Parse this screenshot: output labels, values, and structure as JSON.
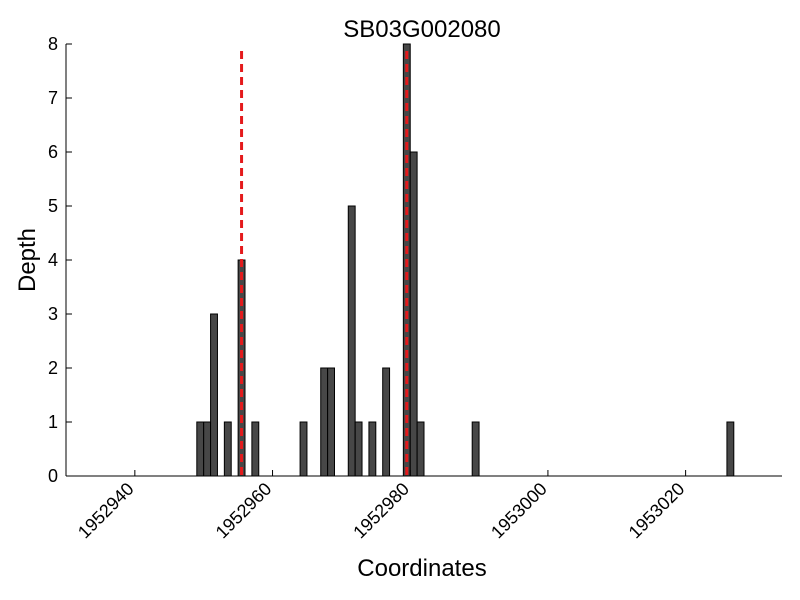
{
  "chart_data": {
    "type": "bar",
    "title": "SB03G002080",
    "xlabel": "Coordinates",
    "ylabel": "Depth",
    "xlim": [
      1952930,
      1953034
    ],
    "ylim": [
      0,
      8
    ],
    "x_ticks": [
      1952940,
      1952960,
      1952980,
      1953000,
      1953020
    ],
    "y_ticks": [
      0,
      1,
      2,
      3,
      4,
      5,
      6,
      7,
      8
    ],
    "bar_color": "#474747",
    "bar_edge_color": "#000000",
    "x": [
      1952949,
      1952950,
      1952951,
      1952953,
      1952955,
      1952957,
      1952964,
      1952967,
      1952968,
      1952971,
      1952972,
      1952974,
      1952976,
      1952979,
      1952980,
      1952981,
      1952989,
      1953026
    ],
    "values": [
      1,
      1,
      3,
      1,
      4,
      1,
      1,
      2,
      2,
      5,
      1,
      1,
      2,
      8,
      6,
      1,
      1,
      1
    ],
    "reference_lines": [
      {
        "x": 1952955,
        "color": "#e41a1c",
        "style": "dashed"
      },
      {
        "x": 1952979,
        "color": "#e41a1c",
        "style": "dashed"
      }
    ],
    "grid": false,
    "legend": "none"
  }
}
